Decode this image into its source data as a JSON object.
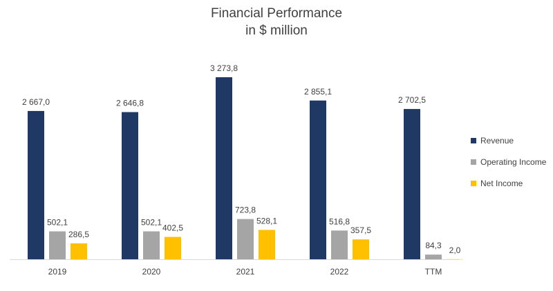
{
  "chart_data": {
    "type": "bar",
    "title": "Financial Performance",
    "subtitle": "in $ million",
    "categories": [
      "2019",
      "2020",
      "2021",
      "2022",
      "TTM"
    ],
    "series": [
      {
        "name": "Revenue",
        "color": "#1f3864",
        "values": [
          2667.0,
          2646.8,
          3273.8,
          2855.1,
          2702.5
        ],
        "labels": [
          "2 667,0",
          "2 646,8",
          "3 273,8",
          "2 855,1",
          "2 702,5"
        ]
      },
      {
        "name": "Operating Income",
        "color": "#a5a5a5",
        "values": [
          502.1,
          502.1,
          723.8,
          516.8,
          84.3
        ],
        "labels": [
          "502,1",
          "502,1",
          "723,8",
          "516,8",
          "84,3"
        ]
      },
      {
        "name": "Net Income",
        "color": "#ffc000",
        "values": [
          286.5,
          402.5,
          528.1,
          357.5,
          2.0
        ],
        "labels": [
          "286,5",
          "402,5",
          "528,1",
          "357,5",
          "2,0"
        ]
      }
    ],
    "ylim": [
      0,
      3273.8
    ],
    "legend": "right",
    "grid": false
  }
}
